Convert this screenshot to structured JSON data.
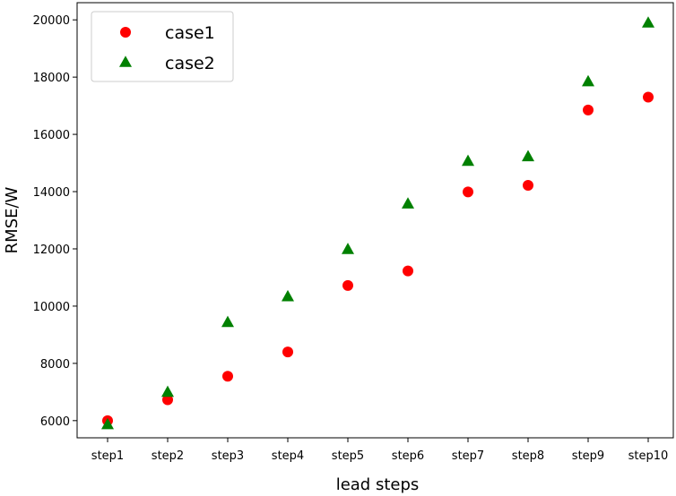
{
  "chart_data": {
    "type": "scatter",
    "title": "",
    "xlabel": "lead steps",
    "ylabel": "RMSE/W",
    "categories": [
      "step1",
      "step2",
      "step3",
      "step4",
      "step5",
      "step6",
      "step7",
      "step8",
      "step9",
      "step10"
    ],
    "ylim": [
      5400,
      20600
    ],
    "yticks": [
      6000,
      8000,
      10000,
      12000,
      14000,
      16000,
      18000,
      20000
    ],
    "grid": false,
    "legend": "top-left",
    "series": [
      {
        "name": "case1",
        "marker": "circle",
        "color": "#ff0000",
        "values": [
          6000,
          6730,
          7550,
          8400,
          10720,
          11230,
          13990,
          14220,
          16850,
          17300
        ]
      },
      {
        "name": "case2",
        "marker": "triangle",
        "color": "#008000",
        "values": [
          5850,
          6980,
          9420,
          10320,
          11970,
          13560,
          15050,
          15210,
          17830,
          19880
        ]
      }
    ]
  }
}
